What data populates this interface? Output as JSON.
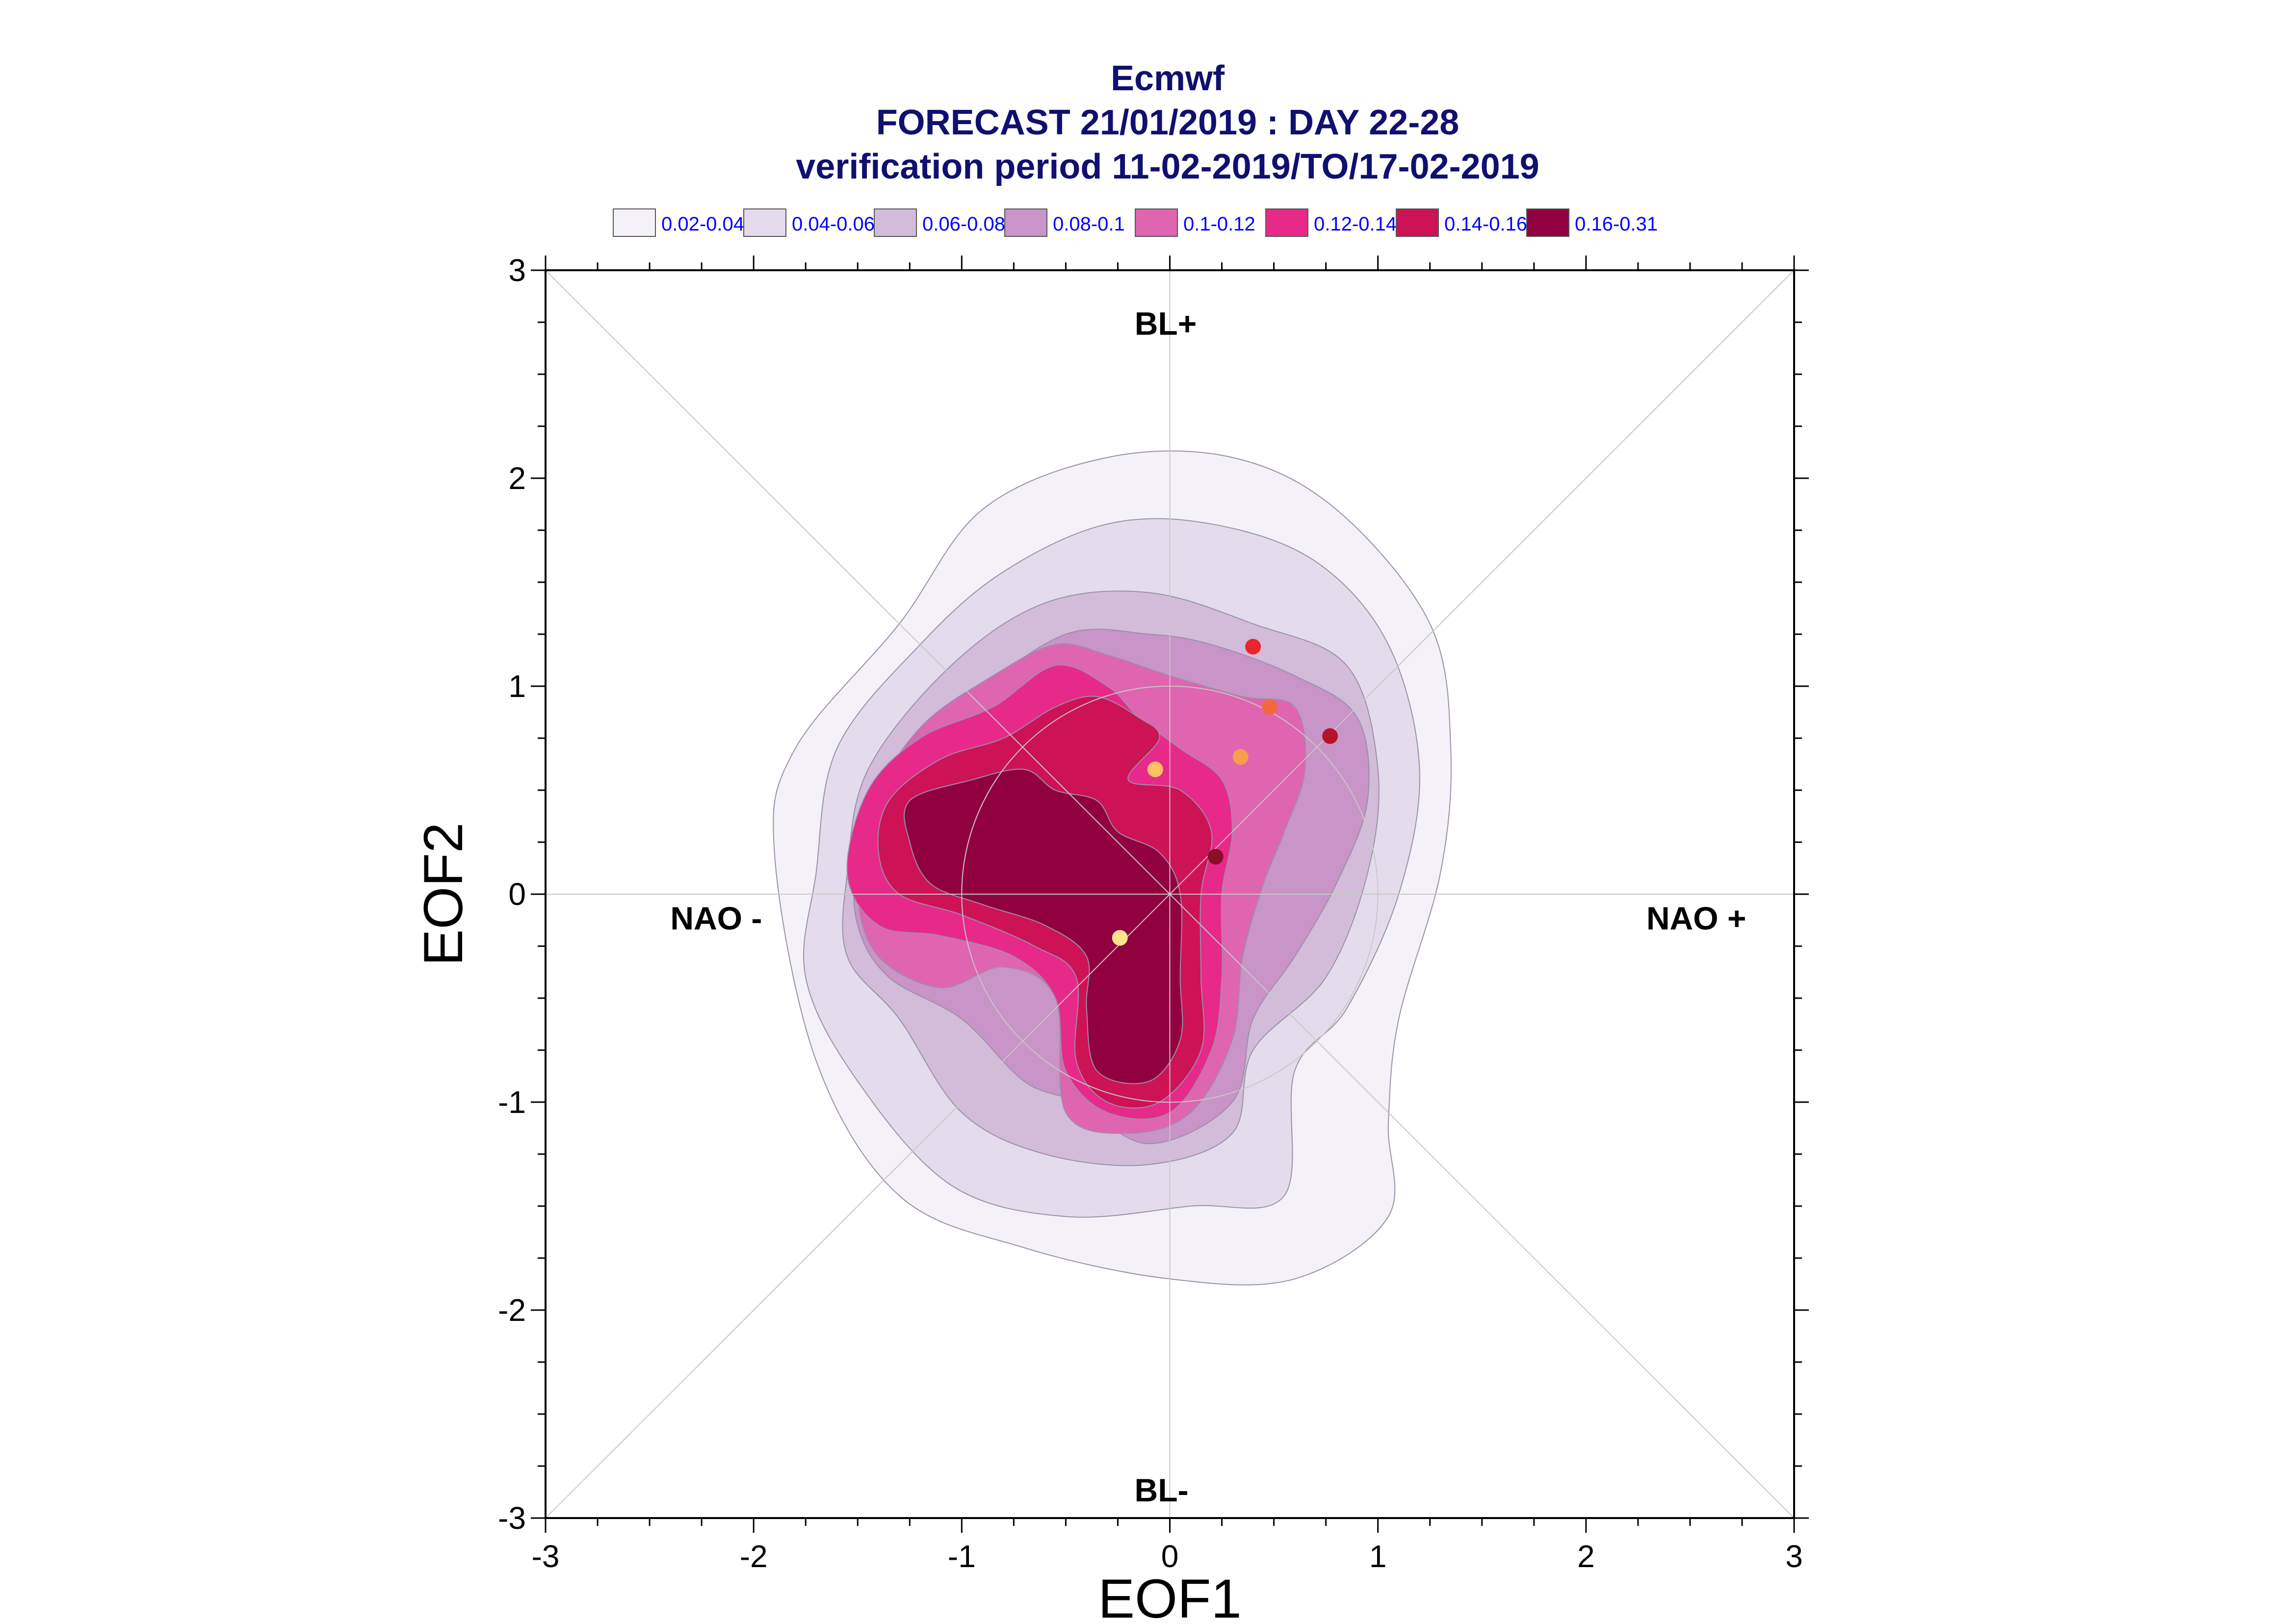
{
  "chart_data": {
    "type": "contour-density-scatter",
    "title": [
      "Ecmwf",
      "FORECAST 21/01/2019 : DAY 22-28",
      "verification period 11-02-2019/TO/17-02-2019"
    ],
    "xlabel": "EOF1",
    "ylabel": "EOF2",
    "xlim": [
      -3,
      3
    ],
    "ylim": [
      -3,
      3
    ],
    "xticks": [
      "-3",
      "-2",
      "-1",
      "0",
      "1",
      "2",
      "3"
    ],
    "yticks": [
      "-3",
      "-2",
      "-1",
      "0",
      "1",
      "2",
      "3"
    ],
    "regime_labels": {
      "top": "BL+",
      "bottom": "BL-",
      "left": "NAO -",
      "right": "NAO +"
    },
    "legend": [
      {
        "label": "0.02-0.04",
        "color": "#f4f2f8"
      },
      {
        "label": "0.04-0.06",
        "color": "#e4dcec"
      },
      {
        "label": "0.06-0.08",
        "color": "#d2bcda"
      },
      {
        "label": "0.08-0.1",
        "color": "#c994c7"
      },
      {
        "label": "0.1-0.12",
        "color": "#df65b0"
      },
      {
        "label": "0.12-0.14",
        "color": "#e7298a"
      },
      {
        "label": "0.14-0.16",
        "color": "#ce1256"
      },
      {
        "label": "0.16-0.31",
        "color": "#91003f"
      }
    ],
    "levels": [
      {
        "color": "#f4f2f8",
        "points": [
          [
            -1.9,
            0.2
          ],
          [
            -1.8,
            0.7
          ],
          [
            -1.3,
            1.3
          ],
          [
            -0.9,
            1.85
          ],
          [
            -0.3,
            2.1
          ],
          [
            0.3,
            2.1
          ],
          [
            0.8,
            1.85
          ],
          [
            1.25,
            1.3
          ],
          [
            1.35,
            0.7
          ],
          [
            1.3,
            0.1
          ],
          [
            1.1,
            -0.6
          ],
          [
            1.05,
            -1.1
          ],
          [
            1.05,
            -1.55
          ],
          [
            0.6,
            -1.85
          ],
          [
            0.0,
            -1.85
          ],
          [
            -0.7,
            -1.7
          ],
          [
            -1.3,
            -1.45
          ],
          [
            -1.7,
            -0.8
          ]
        ]
      },
      {
        "color": "#e4dcec",
        "points": [
          [
            -1.7,
            0.1
          ],
          [
            -1.6,
            0.7
          ],
          [
            -1.2,
            1.2
          ],
          [
            -0.8,
            1.55
          ],
          [
            -0.3,
            1.78
          ],
          [
            0.2,
            1.78
          ],
          [
            0.7,
            1.6
          ],
          [
            1.05,
            1.2
          ],
          [
            1.2,
            0.6
          ],
          [
            1.1,
            0.0
          ],
          [
            0.85,
            -0.55
          ],
          [
            0.6,
            -0.85
          ],
          [
            0.55,
            -1.45
          ],
          [
            0.1,
            -1.5
          ],
          [
            -0.5,
            -1.55
          ],
          [
            -1.05,
            -1.4
          ],
          [
            -1.5,
            -0.9
          ],
          [
            -1.75,
            -0.4
          ]
        ]
      },
      {
        "color": "#d2bcda",
        "points": [
          [
            -1.55,
            0.1
          ],
          [
            -1.45,
            0.6
          ],
          [
            -1.05,
            1.1
          ],
          [
            -0.6,
            1.4
          ],
          [
            -0.1,
            1.45
          ],
          [
            0.4,
            1.3
          ],
          [
            0.85,
            1.1
          ],
          [
            1.0,
            0.6
          ],
          [
            0.95,
            0.1
          ],
          [
            0.75,
            -0.4
          ],
          [
            0.4,
            -0.75
          ],
          [
            0.3,
            -1.15
          ],
          [
            -0.1,
            -1.3
          ],
          [
            -0.6,
            -1.25
          ],
          [
            -1.0,
            -1.05
          ],
          [
            -1.3,
            -0.6
          ],
          [
            -1.55,
            -0.3
          ]
        ]
      },
      {
        "color": "#c994c7",
        "points": [
          [
            -1.5,
            0.15
          ],
          [
            -1.35,
            0.6
          ],
          [
            -0.95,
            0.95
          ],
          [
            -0.5,
            1.25
          ],
          [
            -0.1,
            1.25
          ],
          [
            0.2,
            1.2
          ],
          [
            0.6,
            1.05
          ],
          [
            0.9,
            0.85
          ],
          [
            0.95,
            0.45
          ],
          [
            0.8,
            0.05
          ],
          [
            0.6,
            -0.3
          ],
          [
            0.4,
            -0.6
          ],
          [
            0.3,
            -1.0
          ],
          [
            -0.1,
            -1.2
          ],
          [
            -0.45,
            -1.0
          ],
          [
            -0.7,
            -0.9
          ],
          [
            -1.0,
            -0.6
          ],
          [
            -1.35,
            -0.4
          ],
          [
            -1.5,
            -0.15
          ]
        ]
      },
      {
        "color": "#df65b0",
        "points": [
          [
            -1.45,
            0.4
          ],
          [
            -1.2,
            0.8
          ],
          [
            -0.85,
            1.05
          ],
          [
            -0.55,
            1.2
          ],
          [
            -0.3,
            1.15
          ],
          [
            0.0,
            1.05
          ],
          [
            0.35,
            0.95
          ],
          [
            0.6,
            0.9
          ],
          [
            0.65,
            0.6
          ],
          [
            0.55,
            0.3
          ],
          [
            0.45,
            0.05
          ],
          [
            0.35,
            -0.3
          ],
          [
            0.3,
            -0.7
          ],
          [
            0.1,
            -1.05
          ],
          [
            -0.2,
            -1.15
          ],
          [
            -0.5,
            -1.05
          ],
          [
            -0.55,
            -0.5
          ],
          [
            -0.8,
            -0.35
          ],
          [
            -1.1,
            -0.45
          ],
          [
            -1.4,
            -0.3
          ],
          [
            -1.5,
            0.0
          ]
        ]
      },
      {
        "color": "#e7298a",
        "points": [
          [
            -1.45,
            0.5
          ],
          [
            -1.2,
            0.75
          ],
          [
            -0.85,
            0.9
          ],
          [
            -0.55,
            1.1
          ],
          [
            -0.3,
            1.0
          ],
          [
            -0.15,
            0.85
          ],
          [
            0.05,
            0.7
          ],
          [
            0.25,
            0.55
          ],
          [
            0.3,
            0.3
          ],
          [
            0.25,
            0.0
          ],
          [
            0.25,
            -0.4
          ],
          [
            0.2,
            -0.75
          ],
          [
            0.0,
            -1.05
          ],
          [
            -0.3,
            -1.05
          ],
          [
            -0.5,
            -0.85
          ],
          [
            -0.55,
            -0.5
          ],
          [
            -0.75,
            -0.3
          ],
          [
            -1.1,
            -0.2
          ],
          [
            -1.4,
            -0.15
          ],
          [
            -1.55,
            0.1
          ]
        ]
      },
      {
        "color": "#ce1256",
        "points": [
          [
            -1.35,
            0.45
          ],
          [
            -1.1,
            0.65
          ],
          [
            -0.8,
            0.75
          ],
          [
            -0.55,
            0.9
          ],
          [
            -0.35,
            0.95
          ],
          [
            -0.15,
            0.85
          ],
          [
            -0.05,
            0.75
          ],
          [
            -0.2,
            0.55
          ],
          [
            0.05,
            0.5
          ],
          [
            0.2,
            0.3
          ],
          [
            0.15,
            0.0
          ],
          [
            0.15,
            -0.4
          ],
          [
            0.15,
            -0.75
          ],
          [
            -0.05,
            -1.0
          ],
          [
            -0.3,
            -1.0
          ],
          [
            -0.45,
            -0.8
          ],
          [
            -0.45,
            -0.4
          ],
          [
            -0.65,
            -0.25
          ],
          [
            -1.0,
            -0.1
          ],
          [
            -1.3,
            0.0
          ],
          [
            -1.4,
            0.2
          ]
        ]
      },
      {
        "color": "#91003f",
        "points": [
          [
            -1.25,
            0.45
          ],
          [
            -0.95,
            0.55
          ],
          [
            -0.7,
            0.6
          ],
          [
            -0.55,
            0.5
          ],
          [
            -0.35,
            0.45
          ],
          [
            -0.25,
            0.3
          ],
          [
            -0.05,
            0.2
          ],
          [
            0.05,
            0.0
          ],
          [
            0.05,
            -0.4
          ],
          [
            0.05,
            -0.7
          ],
          [
            -0.1,
            -0.9
          ],
          [
            -0.35,
            -0.85
          ],
          [
            -0.4,
            -0.55
          ],
          [
            -0.4,
            -0.3
          ],
          [
            -0.6,
            -0.15
          ],
          [
            -0.9,
            -0.05
          ],
          [
            -1.15,
            0.05
          ],
          [
            -1.25,
            0.25
          ]
        ]
      }
    ],
    "points": [
      {
        "x": 0.4,
        "y": 1.19,
        "color": "#e8262b"
      },
      {
        "x": 0.48,
        "y": 0.9,
        "color": "#f4693b"
      },
      {
        "x": 0.77,
        "y": 0.76,
        "color": "#b5132b"
      },
      {
        "x": 0.34,
        "y": 0.66,
        "color": "#f99f4b"
      },
      {
        "x": -0.07,
        "y": 0.6,
        "color": "#fdbf62"
      },
      {
        "x": 0.22,
        "y": 0.18,
        "color": "#8c0e26"
      },
      {
        "x": -0.24,
        "y": -0.21,
        "color": "#fde38b"
      }
    ],
    "grid": true,
    "circle_radius": 1
  }
}
